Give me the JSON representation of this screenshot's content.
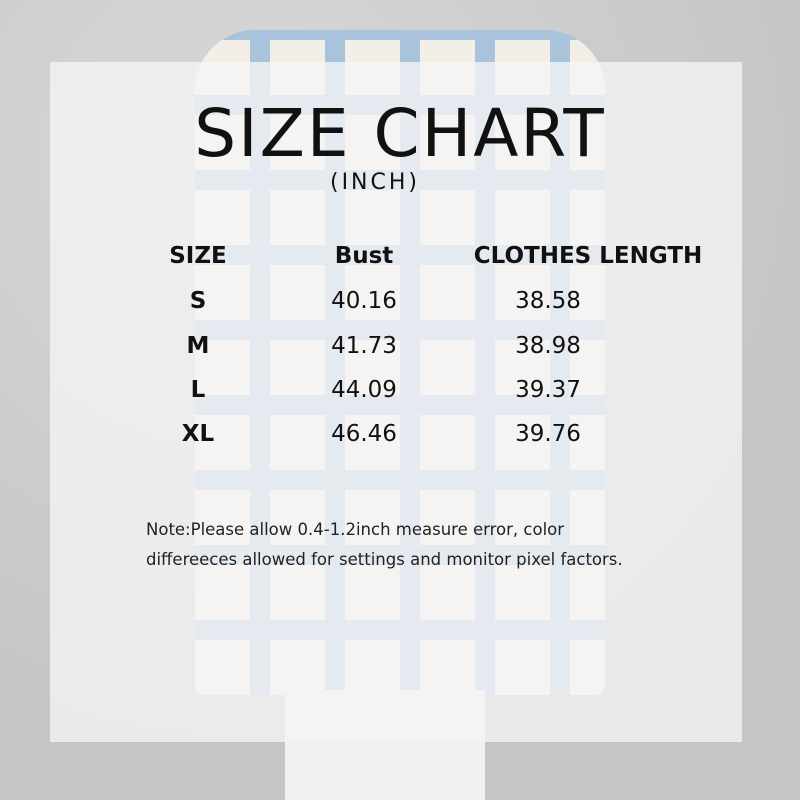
{
  "title": "SIZE CHART",
  "unit": "(INCH)",
  "table": {
    "headers": [
      "SIZE",
      "Bust",
      "CLOTHES LENGTH"
    ],
    "rows": [
      [
        "S",
        "40.16",
        "38.58"
      ],
      [
        "M",
        "41.73",
        "38.98"
      ],
      [
        "L",
        "44.09",
        "39.37"
      ],
      [
        "XL",
        "46.46",
        "39.76"
      ]
    ]
  },
  "note": {
    "line1": "Note:Please allow 0.4-1.2inch measure error, color",
    "line2": "differeeces allowed for settings and monitor pixel factors."
  },
  "colors": {
    "plaid_blue": "#a9c3dc",
    "plaid_cream": "#f3efe7"
  }
}
